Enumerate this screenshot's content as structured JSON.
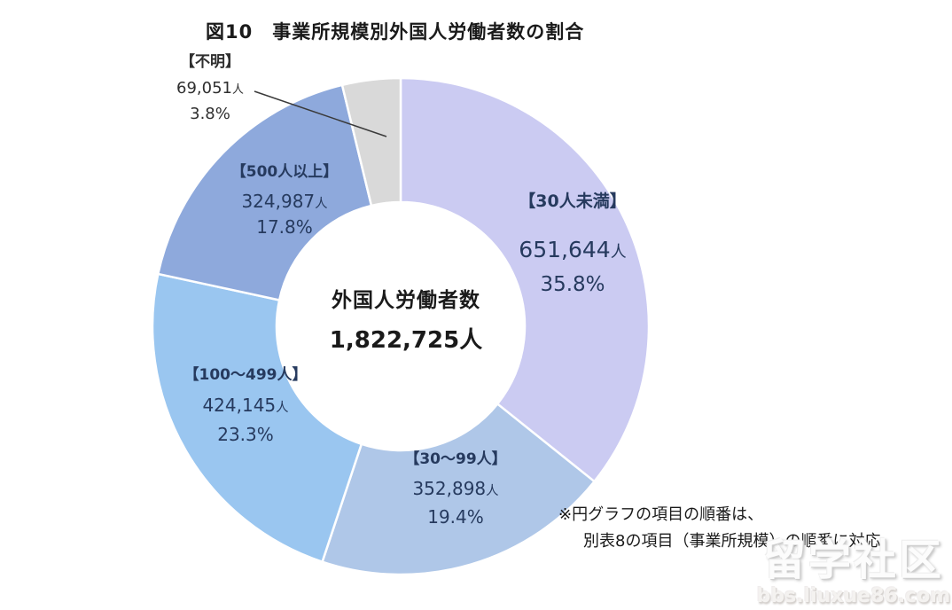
{
  "title": "図10　事業所規模別外国人労働者数の割合",
  "center": {
    "label": "外国人労働者数",
    "value": "1,822,725",
    "unit": "人"
  },
  "note": {
    "line1": "※円グラフの項目の順番は、",
    "line2": "別表8の項目（事業所規模）の順番に対応"
  },
  "watermark": {
    "line1": "留学社区",
    "line2": "bbs.liuxue86.com"
  },
  "chart_data": {
    "type": "pie",
    "donut": true,
    "title": "図10　事業所規模別外国人労働者数の割合",
    "start_angle": "top",
    "direction": "clockwise",
    "center_label": "外国人労働者数",
    "center_value_text": "1,822,725人",
    "total_value": 1822725,
    "unit": "人",
    "segments": [
      {
        "label": "【30人未満】",
        "value": 651644,
        "value_text": "651,644",
        "unit": "人",
        "percent": "35.8%",
        "percent_value": 35.8,
        "color": "#cbcbf2"
      },
      {
        "label": "【30～99人】",
        "value": 352898,
        "value_text": "352,898",
        "unit": "人",
        "percent": "19.4%",
        "percent_value": 19.4,
        "color": "#afc7e8"
      },
      {
        "label": "【100～499人】",
        "value": 424145,
        "value_text": "424,145",
        "unit": "人",
        "percent": "23.3%",
        "percent_value": 23.3,
        "color": "#9ac6f0"
      },
      {
        "label": "【500人以上】",
        "value": 324987,
        "value_text": "324,987",
        "unit": "人",
        "percent": "17.8%",
        "percent_value": 17.8,
        "color": "#8ea9dc"
      },
      {
        "label": "【不明】",
        "value": 69051,
        "value_text": "69,051",
        "unit": "人",
        "percent": "3.8%",
        "percent_value": 3.8,
        "color": "#d9d9d9"
      }
    ],
    "annotations": {
      "leader_line": "from 【不明】 label to gray segment at top",
      "footnote_line1": "※円グラフの項目の順番は、",
      "footnote_line2": "別表8の項目（事業所規模）の順番に対応"
    }
  }
}
